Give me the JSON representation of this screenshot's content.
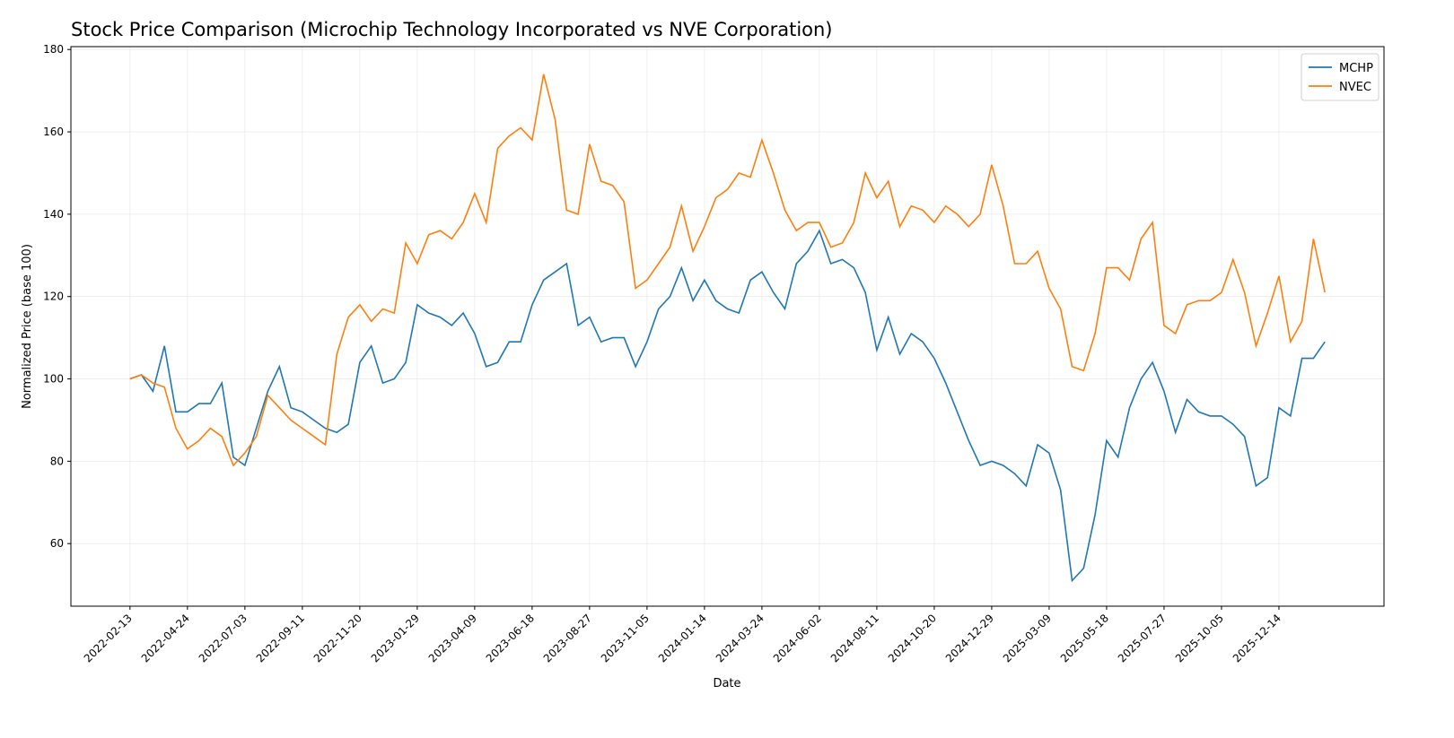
{
  "chart_data": {
    "type": "line",
    "title": "Stock Price Comparison (Microchip Technology Incorporated vs NVE Corporation)",
    "xlabel": "Date",
    "ylabel": "Normalized Price (base 100)",
    "x": [
      "2022-02-13",
      "2022-02-27",
      "2022-03-13",
      "2022-03-27",
      "2022-04-10",
      "2022-04-24",
      "2022-05-08",
      "2022-05-22",
      "2022-06-05",
      "2022-06-19",
      "2022-07-03",
      "2022-07-17",
      "2022-07-31",
      "2022-08-14",
      "2022-08-28",
      "2022-09-11",
      "2022-09-25",
      "2022-10-09",
      "2022-10-23",
      "2022-11-06",
      "2022-11-20",
      "2022-12-04",
      "2022-12-18",
      "2023-01-01",
      "2023-01-15",
      "2023-01-29",
      "2023-02-12",
      "2023-02-26",
      "2023-03-12",
      "2023-03-26",
      "2023-04-09",
      "2023-04-23",
      "2023-05-07",
      "2023-05-21",
      "2023-06-04",
      "2023-06-18",
      "2023-07-02",
      "2023-07-16",
      "2023-07-30",
      "2023-08-13",
      "2023-08-27",
      "2023-09-10",
      "2023-09-24",
      "2023-10-08",
      "2023-10-22",
      "2023-11-05",
      "2023-11-19",
      "2023-12-03",
      "2023-12-17",
      "2023-12-31",
      "2024-01-14",
      "2024-01-28",
      "2024-02-11",
      "2024-02-25",
      "2024-03-10",
      "2024-03-24",
      "2024-04-07",
      "2024-04-21",
      "2024-05-05",
      "2024-05-19",
      "2024-06-02",
      "2024-06-16",
      "2024-06-30",
      "2024-07-14",
      "2024-07-28",
      "2024-08-11",
      "2024-08-25",
      "2024-09-08",
      "2024-09-22",
      "2024-10-06",
      "2024-10-20",
      "2024-11-03",
      "2024-11-17",
      "2024-12-01",
      "2024-12-15",
      "2024-12-29",
      "2025-01-12",
      "2025-01-26",
      "2025-02-09",
      "2025-02-23",
      "2025-03-09",
      "2025-03-23",
      "2025-04-06",
      "2025-04-20",
      "2025-05-04",
      "2025-05-18",
      "2025-06-01",
      "2025-06-15",
      "2025-06-29",
      "2025-07-13",
      "2025-07-27",
      "2025-08-10",
      "2025-08-24",
      "2025-09-07",
      "2025-09-21",
      "2025-10-05",
      "2025-10-19",
      "2025-11-02",
      "2025-11-16",
      "2025-11-30",
      "2025-12-14",
      "2025-12-28",
      "2026-01-11",
      "2026-01-25",
      "2026-02-08"
    ],
    "series": [
      {
        "name": "MCHP",
        "color": "#1f77b4",
        "values": [
          100,
          101,
          97,
          108,
          92,
          92,
          94,
          94,
          99,
          81,
          79,
          88,
          97,
          103,
          93,
          92,
          90,
          88,
          87,
          89,
          104,
          108,
          99,
          100,
          104,
          118,
          116,
          115,
          113,
          116,
          111,
          103,
          104,
          109,
          109,
          118,
          124,
          126,
          128,
          113,
          115,
          109,
          110,
          110,
          103,
          109,
          117,
          120,
          127,
          119,
          124,
          119,
          117,
          116,
          124,
          126,
          121,
          117,
          128,
          131,
          136,
          128,
          129,
          127,
          121,
          107,
          115,
          106,
          111,
          109,
          105,
          99,
          92,
          85,
          79,
          80,
          79,
          77,
          74,
          84,
          82,
          73,
          51,
          54,
          67,
          85,
          81,
          93,
          100,
          104,
          97,
          87,
          95,
          92,
          91,
          91,
          89,
          86,
          74,
          76,
          93,
          91,
          105,
          105,
          109
        ]
      },
      {
        "name": "NVEC",
        "color": "#ff7f0e",
        "values": [
          100,
          101,
          99,
          98,
          88,
          83,
          85,
          88,
          86,
          79,
          82,
          86,
          96,
          93,
          90,
          88,
          86,
          84,
          106,
          115,
          118,
          114,
          117,
          116,
          133,
          128,
          135,
          136,
          134,
          138,
          145,
          138,
          156,
          159,
          161,
          158,
          174,
          163,
          141,
          140,
          157,
          148,
          147,
          143,
          122,
          124,
          128,
          132,
          142,
          131,
          137,
          144,
          146,
          150,
          149,
          158,
          150,
          141,
          136,
          138,
          138,
          132,
          133,
          138,
          150,
          144,
          148,
          137,
          142,
          141,
          138,
          142,
          140,
          137,
          140,
          152,
          142,
          128,
          128,
          131,
          122,
          117,
          103,
          102,
          111,
          127,
          127,
          124,
          134,
          138,
          113,
          111,
          118,
          119,
          119,
          121,
          129,
          121,
          108,
          116,
          125,
          109,
          114,
          134,
          121
        ]
      }
    ],
    "xlim": [
      "2021-12-03",
      "2026-04-21"
    ],
    "xticks": [
      "2022-02-13",
      "2022-04-24",
      "2022-07-03",
      "2022-09-11",
      "2022-11-20",
      "2023-01-29",
      "2023-04-09",
      "2023-06-18",
      "2023-08-27",
      "2023-11-05",
      "2024-01-14",
      "2024-03-24",
      "2024-06-02",
      "2024-08-11",
      "2024-10-20",
      "2024-12-29",
      "2025-03-09",
      "2025-05-18",
      "2025-07-27",
      "2025-10-05",
      "2025-12-14"
    ],
    "ylim": [
      44.8,
      180.7
    ],
    "yticks": [
      60,
      80,
      100,
      120,
      140,
      160,
      180
    ],
    "grid": true,
    "legend": "upper right"
  }
}
